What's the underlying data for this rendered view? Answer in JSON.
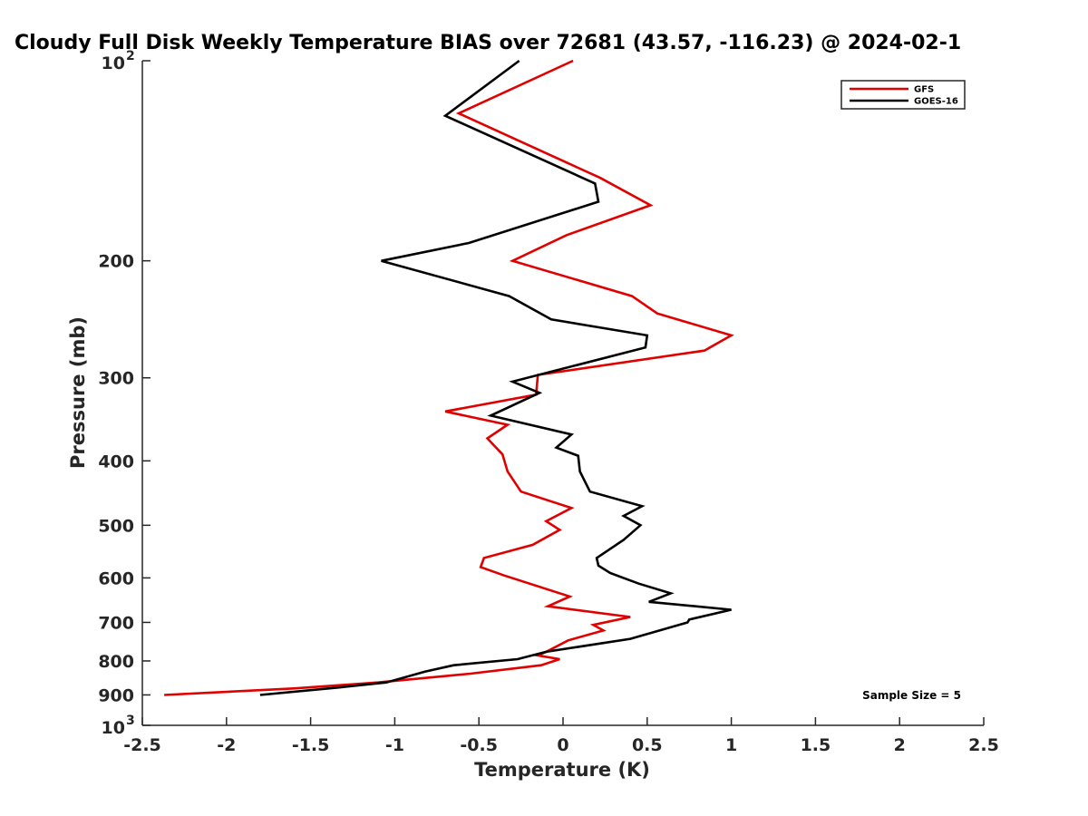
{
  "chart_data": {
    "type": "line",
    "title": "Cloudy Full Disk Weekly Temperature BIAS over 72681 (43.57, -116.23) @ 2024-02-1",
    "xlabel": "Temperature (K)",
    "ylabel": "Pressure (mb)",
    "xlim": [
      -2.5,
      2.5
    ],
    "ylim": [
      100,
      1000
    ],
    "y_scale": "log",
    "y_reversed": true,
    "grid": false,
    "legend_position": "top-right",
    "x_ticks": [
      -2.5,
      -2,
      -1.5,
      -1,
      -0.5,
      0,
      0.5,
      1,
      1.5,
      2,
      2.5
    ],
    "x_tick_labels": [
      "-2.5",
      "-2",
      "-1.5",
      "-1",
      "-0.5",
      "0",
      "0.5",
      "1",
      "1.5",
      "2",
      "2.5"
    ],
    "y_ticks": [
      {
        "value": 100,
        "base": "10",
        "exp": "2"
      },
      {
        "value": 200,
        "label": "200"
      },
      {
        "value": 300,
        "label": "300"
      },
      {
        "value": 400,
        "label": "400"
      },
      {
        "value": 500,
        "label": "500"
      },
      {
        "value": 600,
        "label": "600"
      },
      {
        "value": 700,
        "label": "700"
      },
      {
        "value": 800,
        "label": "800"
      },
      {
        "value": 900,
        "label": "900"
      },
      {
        "value": 1000,
        "base": "10",
        "exp": "3"
      }
    ],
    "series": [
      {
        "name": "GFS",
        "color": "#e00000",
        "points": [
          [
            0.06,
            100
          ],
          [
            -0.62,
            120
          ],
          [
            0.22,
            150
          ],
          [
            0.52,
            165
          ],
          [
            0.02,
            183
          ],
          [
            -0.3,
            200
          ],
          [
            0.41,
            226
          ],
          [
            0.56,
            240
          ],
          [
            1.0,
            259
          ],
          [
            0.84,
            273
          ],
          [
            -0.15,
            297
          ],
          [
            -0.16,
            318
          ],
          [
            -0.7,
            337
          ],
          [
            -0.33,
            353
          ],
          [
            -0.45,
            370
          ],
          [
            -0.36,
            391
          ],
          [
            -0.33,
            415
          ],
          [
            -0.25,
            445
          ],
          [
            0.05,
            471
          ],
          [
            -0.1,
            493
          ],
          [
            -0.02,
            508
          ],
          [
            -0.18,
            535
          ],
          [
            -0.47,
            560
          ],
          [
            -0.49,
            578
          ],
          [
            -0.35,
            595
          ],
          [
            0.04,
            640
          ],
          [
            -0.09,
            662
          ],
          [
            0.4,
            687
          ],
          [
            0.18,
            706
          ],
          [
            0.24,
            720
          ],
          [
            0.03,
            745
          ],
          [
            -0.1,
            775
          ],
          [
            -0.15,
            785
          ],
          [
            -0.02,
            795
          ],
          [
            -0.13,
            812
          ],
          [
            -0.55,
            836
          ],
          [
            -1.1,
            862
          ],
          [
            -1.6,
            880
          ],
          [
            -2.37,
            900
          ]
        ]
      },
      {
        "name": "GOES-16",
        "color": "#000000",
        "points": [
          [
            -0.26,
            100
          ],
          [
            -0.7,
            121
          ],
          [
            0.19,
            153
          ],
          [
            0.21,
            163
          ],
          [
            -0.56,
            188
          ],
          [
            -1.08,
            200
          ],
          [
            -0.32,
            226
          ],
          [
            -0.07,
            245
          ],
          [
            0.5,
            259
          ],
          [
            0.49,
            270
          ],
          [
            -0.3,
            304
          ],
          [
            -0.14,
            316
          ],
          [
            -0.43,
            342
          ],
          [
            0.05,
            365
          ],
          [
            -0.04,
            382
          ],
          [
            0.09,
            393
          ],
          [
            0.1,
            415
          ],
          [
            0.16,
            445
          ],
          [
            0.47,
            468
          ],
          [
            0.36,
            484
          ],
          [
            0.46,
            500
          ],
          [
            0.36,
            526
          ],
          [
            0.2,
            560
          ],
          [
            0.21,
            575
          ],
          [
            0.28,
            590
          ],
          [
            0.45,
            612
          ],
          [
            0.64,
            633
          ],
          [
            0.51,
            652
          ],
          [
            1.0,
            670
          ],
          [
            0.75,
            693
          ],
          [
            0.74,
            700
          ],
          [
            0.4,
            741
          ],
          [
            -0.1,
            775
          ],
          [
            -0.27,
            795
          ],
          [
            -0.65,
            812
          ],
          [
            -0.82,
            830
          ],
          [
            -1.05,
            862
          ],
          [
            -1.33,
            877
          ],
          [
            -1.8,
            900
          ]
        ]
      }
    ],
    "annotations": [
      "Sample Size = 5"
    ]
  }
}
